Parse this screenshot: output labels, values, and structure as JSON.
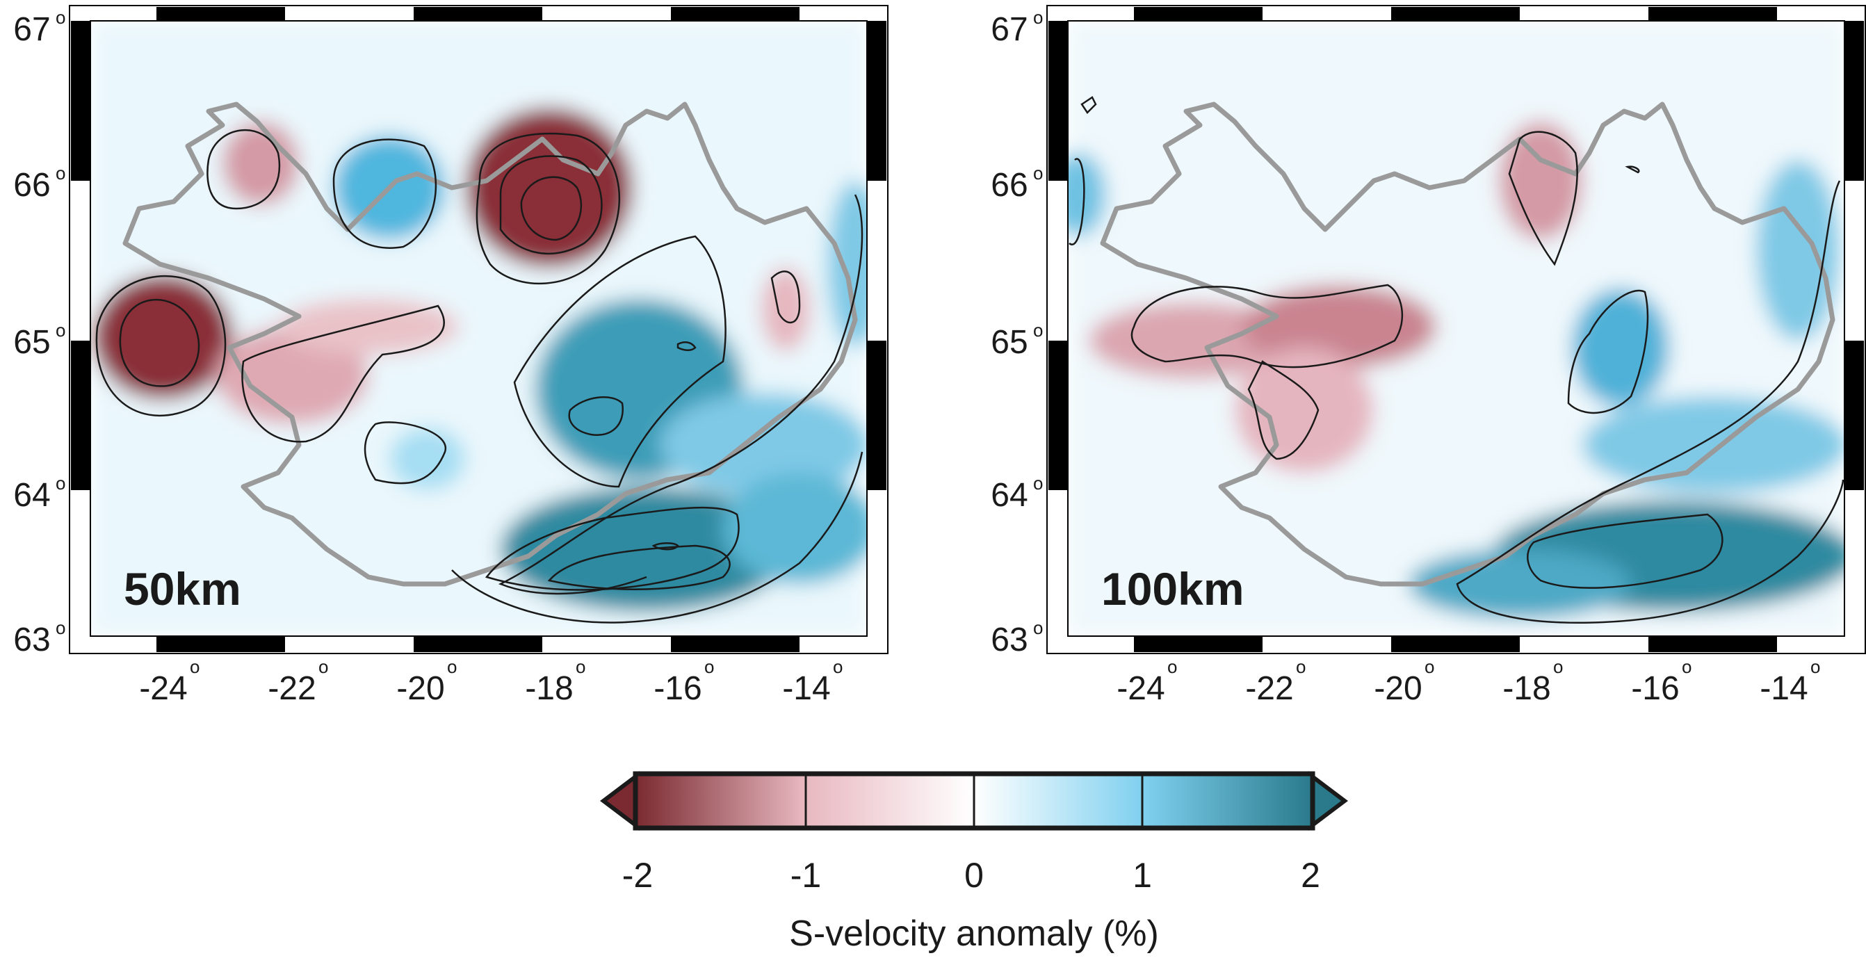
{
  "panels": [
    {
      "depth_label": "50km",
      "lat_labels": [
        "67",
        "66",
        "65",
        "64",
        "63"
      ],
      "lon_labels": [
        "-24",
        "-22",
        "-20",
        "-18",
        "-16",
        "-14"
      ]
    },
    {
      "depth_label": "100km",
      "lat_labels": [
        "67",
        "66",
        "65",
        "64",
        "63"
      ],
      "lon_labels": [
        "-24",
        "-22",
        "-20",
        "-18",
        "-16",
        "-14"
      ]
    }
  ],
  "degree_symbol": "o",
  "colorbar": {
    "title": "S-velocity anomaly (%)",
    "tick_labels": [
      "-2",
      "-1",
      "0",
      "1",
      "2"
    ],
    "range": [
      -2,
      2
    ],
    "colors": [
      "#7a2a30",
      "#e8b8c0",
      "#ffffff",
      "#7fd0ef",
      "#2a7a8c"
    ]
  },
  "colors": {
    "coastline": "#9a9a9a",
    "contour": "#1a1a1a",
    "slow_strong": "#8a2f38",
    "slow_light": "#e9c2c8",
    "fast_light": "#9fdcf2",
    "fast_strong": "#2f8aa0"
  },
  "map_extent": {
    "lon": [
      -25,
      -13
    ],
    "lat": [
      63,
      67
    ]
  }
}
